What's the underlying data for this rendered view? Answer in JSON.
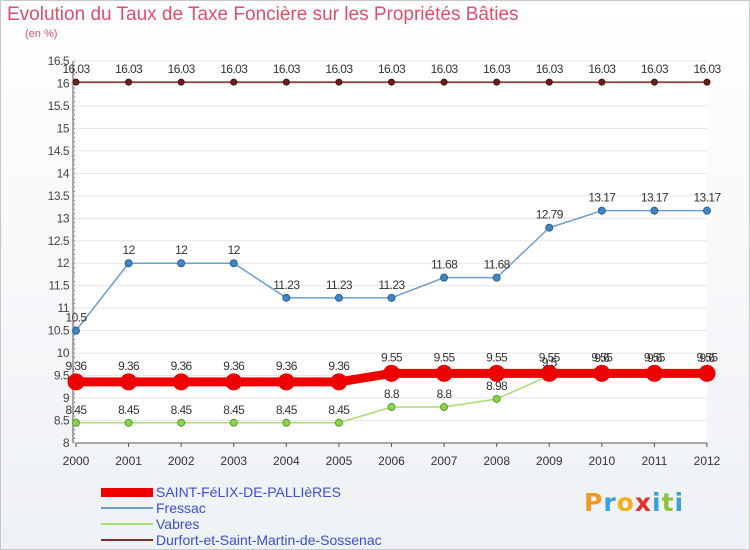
{
  "title": "Evolution du Taux de Taxe Foncière sur les Propriétés Bâties",
  "subtitle": "(en %)",
  "logo": {
    "text": "Proxiti",
    "colors": [
      "#f29a1e",
      "#3aa0d8",
      "#f2b01e",
      "#e0322b",
      "#3aa0d8",
      "#8cc63f",
      "#3aa0d8"
    ]
  },
  "chart_data": {
    "type": "line",
    "x": [
      "2000",
      "2001",
      "2002",
      "2003",
      "2004",
      "2005",
      "2006",
      "2007",
      "2008",
      "2009",
      "2010",
      "2011",
      "2012"
    ],
    "ylim": [
      8,
      16.5
    ],
    "yticks": [
      "8",
      "8.5",
      "9",
      "9.5",
      "10",
      "10.5",
      "11",
      "11.5",
      "12",
      "12.5",
      "13",
      "13.5",
      "14",
      "14.5",
      "15",
      "15.5",
      "16",
      "16.5"
    ],
    "legend_position": "bottom-left",
    "series": [
      {
        "name": "SAINT-FéLIX-DE-PALLIèRES",
        "color": "#ee0000",
        "values": [
          9.36,
          9.36,
          9.36,
          9.36,
          9.36,
          9.36,
          9.55,
          9.55,
          9.55,
          9.55,
          9.55,
          9.55,
          9.55
        ],
        "labels": [
          "9.36",
          "9.36",
          "9.36",
          "9.36",
          "9.36",
          "9.36",
          "9.55",
          "9.55",
          "9.55",
          "9.55",
          "9.55",
          "9.55",
          "9.55"
        ]
      },
      {
        "name": "Fressac",
        "color": "#6d9fcf",
        "values": [
          10.5,
          12,
          12,
          12,
          11.23,
          11.23,
          11.23,
          11.68,
          11.68,
          12.79,
          13.17,
          13.17,
          13.17
        ],
        "labels": [
          "10.5",
          "12",
          "12",
          "12",
          "11.23",
          "11.23",
          "11.23",
          "11.68",
          "11.68",
          "12.79",
          "13.17",
          "13.17",
          "13.17"
        ]
      },
      {
        "name": "Vabres",
        "color": "#a9dc73",
        "values": [
          8.45,
          8.45,
          8.45,
          8.45,
          8.45,
          8.45,
          8.8,
          8.8,
          8.98,
          9.5,
          9.6,
          9.6,
          9.6
        ],
        "labels": [
          "8.45",
          "8.45",
          "8.45",
          "8.45",
          "8.45",
          "8.45",
          "8.8",
          "8.8",
          "8.98",
          "9.5",
          "9.6",
          "9.6",
          "9.6"
        ]
      },
      {
        "name": "Durfort-et-Saint-Martin-de-Sossenac",
        "color": "#7b2c2c",
        "values": [
          16.03,
          16.03,
          16.03,
          16.03,
          16.03,
          16.03,
          16.03,
          16.03,
          16.03,
          16.03,
          16.03,
          16.03,
          16.03
        ],
        "labels": [
          "16.03",
          "16.03",
          "16.03",
          "16.03",
          "16.03",
          "16.03",
          "16.03",
          "16.03",
          "16.03",
          "16.03",
          "16.03",
          "16.03",
          "16.03"
        ]
      }
    ]
  }
}
